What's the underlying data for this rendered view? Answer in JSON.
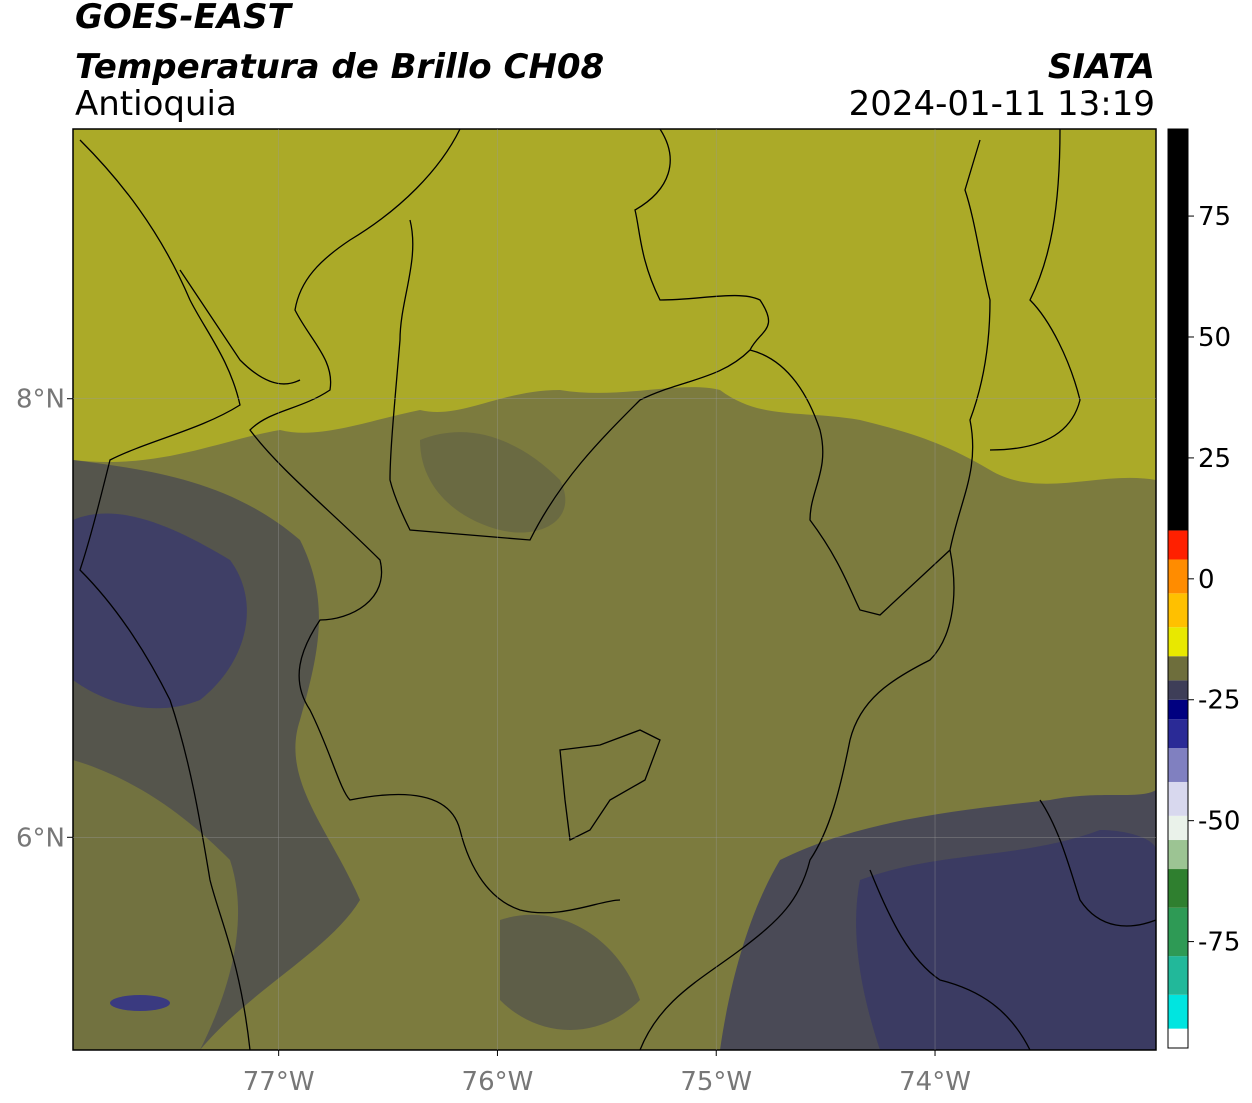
{
  "chart_data": {
    "type": "map",
    "title": "GOES-EAST",
    "subtitle": "Temperatura de Brillo CH08",
    "region": "Antioquia",
    "source": "SIATA",
    "timestamp": "2024-01-11 13:19",
    "xlim": [
      -77.94,
      -72.99
    ],
    "ylim": [
      5.03,
      9.23
    ],
    "xticks": [
      {
        "value": -77,
        "label": "77°W"
      },
      {
        "value": -76,
        "label": "76°W"
      },
      {
        "value": -75,
        "label": "75°W"
      },
      {
        "value": -74,
        "label": "74°W"
      }
    ],
    "yticks": [
      {
        "value": 6,
        "label": "6°N"
      },
      {
        "value": 8,
        "label": "8°N"
      }
    ],
    "grid": true,
    "colorbar": {
      "lim": [
        -97,
        93
      ],
      "ticks": [
        -75,
        -50,
        -25,
        0,
        25,
        50,
        75
      ],
      "stops": [
        {
          "value": -97,
          "color": "#ffffff"
        },
        {
          "value": -93,
          "color": "#00e5e0"
        },
        {
          "value": -86,
          "color": "#22b89a"
        },
        {
          "value": -78,
          "color": "#2e9a55"
        },
        {
          "value": -68,
          "color": "#2f7f2f"
        },
        {
          "value": -60,
          "color": "#9cc493"
        },
        {
          "value": -54,
          "color": "#eaf2ea"
        },
        {
          "value": -49,
          "color": "#d8d8ee"
        },
        {
          "value": -42,
          "color": "#8080c0"
        },
        {
          "value": -35,
          "color": "#2a2a96"
        },
        {
          "value": -29,
          "color": "#000080"
        },
        {
          "value": -25,
          "color": "#3e3e58"
        },
        {
          "value": -21,
          "color": "#6e6e3c"
        },
        {
          "value": -16,
          "color": "#e8e800"
        },
        {
          "value": -10,
          "color": "#ffc000"
        },
        {
          "value": -3,
          "color": "#ff8c00"
        },
        {
          "value": 4,
          "color": "#ff2000"
        },
        {
          "value": 10,
          "color": "#000000"
        }
      ]
    }
  }
}
